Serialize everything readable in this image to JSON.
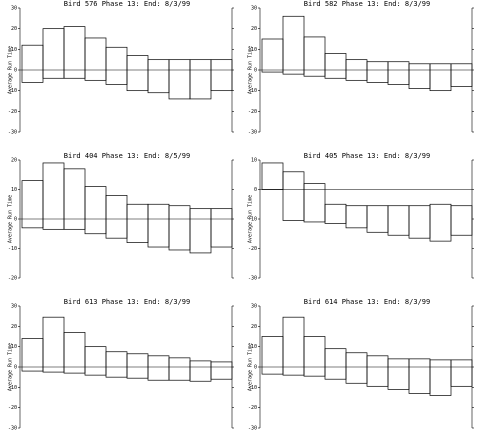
{
  "chart_data": [
    {
      "type": "bar",
      "title": "Bird 576 Phase 13:  End: 8/3/99",
      "y_label": "Average Run Time",
      "ylim": [
        -30,
        30
      ],
      "yticks": [
        -30,
        -20,
        -10,
        0,
        10,
        20,
        30
      ],
      "color": "#000000",
      "series": [
        {
          "values": [
            12,
            20,
            21,
            15.5,
            11,
            7,
            5,
            5,
            5,
            5
          ]
        },
        {
          "values": [
            -6,
            -4,
            -4,
            -5,
            -7,
            -10,
            -11,
            -14,
            -14,
            -10
          ]
        }
      ]
    },
    {
      "type": "bar",
      "title": "Bird 582 Phase 13:  End: 8/3/99",
      "y_label": "Average Run Time",
      "ylim": [
        -30,
        30
      ],
      "yticks": [
        -30,
        -20,
        -10,
        0,
        10,
        20,
        30
      ],
      "color": "#000000",
      "series": [
        {
          "values": [
            15,
            26,
            16,
            8,
            5,
            4,
            4,
            3,
            3,
            3
          ]
        },
        {
          "values": [
            -1,
            -2,
            -3,
            -4,
            -5,
            -6,
            -7,
            -9,
            -10,
            -8
          ]
        }
      ]
    },
    {
      "type": "bar",
      "title": "Bird 404 Phase 13:  End: 8/5/99",
      "y_label": "Average Run Time",
      "ylim": [
        -20,
        20
      ],
      "yticks": [
        -20,
        -10,
        0,
        10,
        20
      ],
      "color": "#000000",
      "series": [
        {
          "values": [
            13,
            19,
            17,
            11,
            8,
            5,
            5,
            4.5,
            3.5,
            3.5
          ]
        },
        {
          "values": [
            -3,
            -3.5,
            -3.5,
            -5,
            -6.5,
            -8,
            -9.5,
            -10.5,
            -11.5,
            -9.5
          ]
        }
      ]
    },
    {
      "type": "bar",
      "title": "Bird 405 Phase 13:  End: 8/3/99",
      "y_label": "Average Run Time",
      "ylim": [
        -30,
        10
      ],
      "yticks": [
        -30,
        -20,
        -10,
        0,
        10
      ],
      "color": "#000000",
      "series": [
        {
          "values": [
            9,
            6,
            2,
            -5,
            -5.5,
            -5.5,
            -5.5,
            -5.5,
            -5,
            -5.5
          ]
        },
        {
          "values": [
            0,
            -10.5,
            -11,
            -11.5,
            -13,
            -14.5,
            -15.5,
            -16.5,
            -17.5,
            -15.5
          ]
        }
      ]
    },
    {
      "type": "bar",
      "title": "Bird 613 Phase 13:  End: 8/3/99",
      "y_label": "Average Run Time",
      "ylim": [
        -30,
        30
      ],
      "yticks": [
        -30,
        -20,
        -10,
        0,
        10,
        20,
        30
      ],
      "color": "#000000",
      "series": [
        {
          "values": [
            14,
            24.5,
            17,
            10,
            7.5,
            6.5,
            5.5,
            4.5,
            3,
            2.5
          ]
        },
        {
          "values": [
            -2,
            -2.5,
            -3,
            -4,
            -5,
            -5.5,
            -6.5,
            -6.5,
            -7,
            -6
          ]
        }
      ]
    },
    {
      "type": "bar",
      "title": "Bird 614 Phase 13:  End: 8/3/99",
      "y_label": "Average Run Time",
      "ylim": [
        -30,
        30
      ],
      "yticks": [
        -30,
        -20,
        -10,
        0,
        10,
        20,
        30
      ],
      "color": "#000000",
      "series": [
        {
          "values": [
            15,
            24.5,
            15,
            9,
            7,
            5.5,
            4,
            4,
            3.5,
            3.5
          ]
        },
        {
          "values": [
            -3.5,
            -4,
            -4.5,
            -6,
            -8,
            -9.5,
            -11,
            -13,
            -14,
            -9.5
          ]
        }
      ]
    }
  ]
}
